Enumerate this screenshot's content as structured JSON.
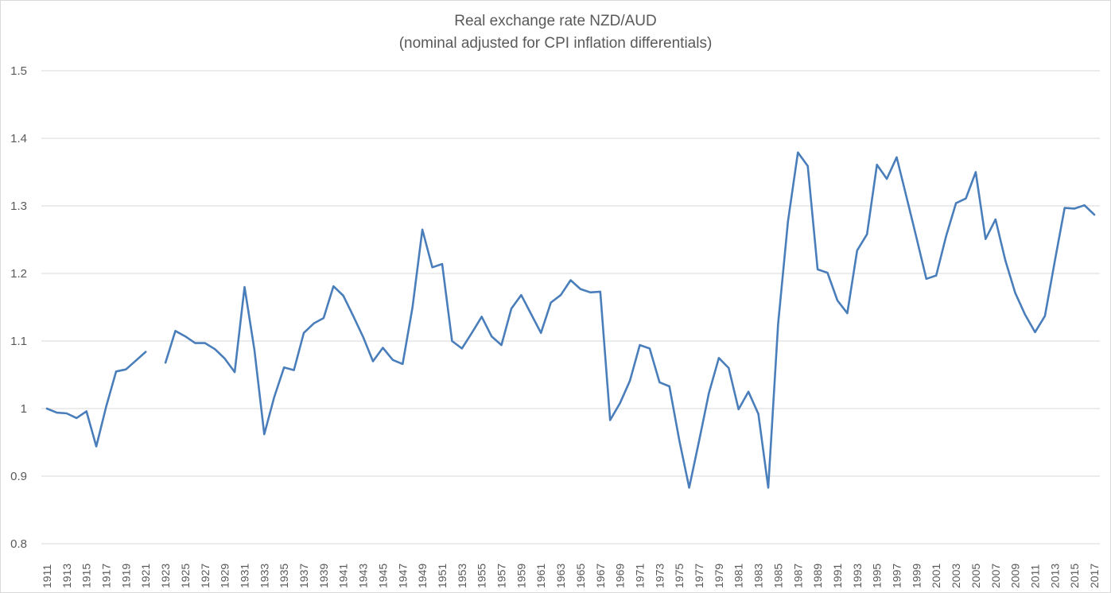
{
  "chart_data": {
    "type": "line",
    "title": "Real exchange rate NZD/AUD",
    "subtitle": "(nominal adjusted for CPI inflation differentials)",
    "xlabel": "",
    "ylabel": "",
    "ylim": [
      0.8,
      1.5
    ],
    "yticks": [
      "0.8",
      "0.9",
      "1",
      "1.1",
      "1.2",
      "1.3",
      "1.4",
      "1.5"
    ],
    "grid": true,
    "legend": "none",
    "line_color": "#4a7ebb",
    "series": [
      {
        "name": "Real exchange rate NZD/AUD",
        "x": [
          1911,
          1912,
          1913,
          1914,
          1915,
          1916,
          1917,
          1918,
          1919,
          1920,
          1921,
          1922,
          1923,
          1924,
          1925,
          1926,
          1927,
          1928,
          1929,
          1930,
          1931,
          1932,
          1933,
          1934,
          1935,
          1936,
          1937,
          1938,
          1939,
          1940,
          1941,
          1942,
          1943,
          1944,
          1945,
          1946,
          1947,
          1948,
          1949,
          1950,
          1951,
          1952,
          1953,
          1954,
          1955,
          1956,
          1957,
          1958,
          1959,
          1960,
          1961,
          1962,
          1963,
          1964,
          1965,
          1966,
          1967,
          1968,
          1969,
          1970,
          1971,
          1972,
          1973,
          1974,
          1975,
          1976,
          1977,
          1978,
          1979,
          1980,
          1981,
          1982,
          1983,
          1984,
          1985,
          1986,
          1987,
          1988,
          1989,
          1990,
          1991,
          1992,
          1993,
          1994,
          1995,
          1996,
          1997,
          1998,
          1999,
          2000,
          2001,
          2002,
          2003,
          2004,
          2005,
          2006,
          2007,
          2008,
          2009,
          2010,
          2011,
          2012,
          2013,
          2014,
          2015,
          2016,
          2017
        ],
        "values": [
          1.0,
          0.994,
          0.993,
          0.986,
          0.996,
          0.944,
          1.003,
          1.055,
          1.058,
          1.071,
          1.084,
          null,
          1.068,
          1.115,
          1.107,
          1.097,
          1.097,
          1.088,
          1.074,
          1.054,
          1.18,
          1.087,
          0.962,
          1.017,
          1.061,
          1.057,
          1.112,
          1.126,
          1.134,
          1.181,
          1.167,
          1.137,
          1.106,
          1.07,
          1.09,
          1.072,
          1.066,
          1.15,
          1.265,
          1.209,
          1.214,
          1.1,
          1.089,
          1.112,
          1.136,
          1.107,
          1.094,
          1.148,
          1.168,
          1.14,
          1.112,
          1.157,
          1.168,
          1.19,
          1.177,
          1.172,
          1.173,
          0.983,
          1.008,
          1.041,
          1.094,
          1.089,
          1.039,
          1.033,
          0.953,
          0.883,
          0.952,
          1.023,
          1.075,
          1.06,
          0.999,
          1.025,
          0.992,
          0.883,
          1.125,
          1.277,
          1.379,
          1.359,
          1.206,
          1.201,
          1.16,
          1.141,
          1.234,
          1.258,
          1.361,
          1.34,
          1.372,
          1.313,
          1.253,
          1.192,
          1.197,
          1.255,
          1.304,
          1.311,
          1.35,
          1.251,
          1.28,
          1.219,
          1.171,
          1.139,
          1.113,
          1.137,
          1.218,
          1.297,
          1.296,
          1.301,
          1.287
        ]
      }
    ]
  }
}
